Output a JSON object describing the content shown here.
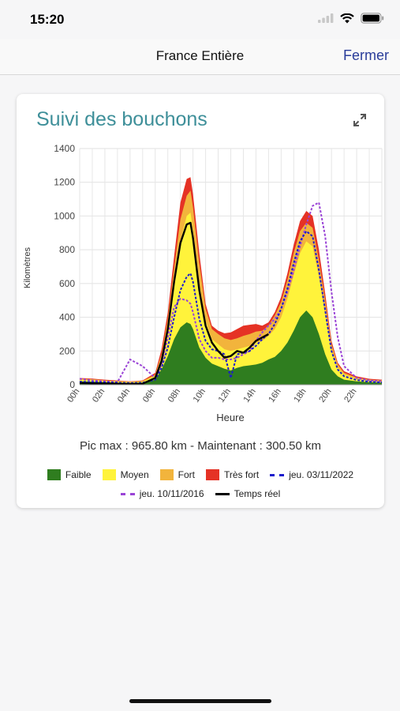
{
  "status": {
    "time": "15:20"
  },
  "nav": {
    "title": "France Entière",
    "close_label": "Fermer"
  },
  "card": {
    "title": "Suivi des bouchons",
    "pic_text": "Pic max : 965.80 km - Maintenant : 300.50 km"
  },
  "colors": {
    "faible": "#2f7d1f",
    "moyen": "#fff33b",
    "fort": "#f2b43c",
    "tres_fort": "#e53225",
    "jeu_2022": "#1b1bcc",
    "jeu_2016": "#9a44d6",
    "temps_reel": "#000000",
    "title": "#3e8f99"
  },
  "legend": [
    {
      "key": "faible",
      "label": "Faible",
      "kind": "swatch"
    },
    {
      "key": "moyen",
      "label": "Moyen",
      "kind": "swatch"
    },
    {
      "key": "fort",
      "label": "Fort",
      "kind": "swatch"
    },
    {
      "key": "tres_fort",
      "label": "Très fort",
      "kind": "swatch"
    },
    {
      "key": "jeu_2022",
      "label": "jeu. 03/11/2022",
      "kind": "dash"
    },
    {
      "key": "jeu_2016",
      "label": "jeu. 10/11/2016",
      "kind": "dash"
    },
    {
      "key": "temps_reel",
      "label": "Temps réel",
      "kind": "solid"
    }
  ],
  "chart_data": {
    "type": "area",
    "xlabel": "Heure",
    "ylabel": "Kilomètres",
    "xlim": [
      0,
      24
    ],
    "ylim": [
      0,
      1400
    ],
    "y_ticks": [
      0,
      200,
      400,
      600,
      800,
      1000,
      1200,
      1400
    ],
    "x_ticks": [
      0,
      2,
      4,
      6,
      8,
      10,
      12,
      14,
      16,
      18,
      20,
      22
    ],
    "x_tick_labels": [
      "00h",
      "02h",
      "04h",
      "06h",
      "08h",
      "10h",
      "12h",
      "14h",
      "16h",
      "18h",
      "20h",
      "22h"
    ],
    "grid": true,
    "x": [
      0,
      1,
      2,
      3,
      4,
      5,
      6,
      6.5,
      7,
      7.5,
      8,
      8.5,
      8.8,
      9,
      9.5,
      10,
      10.5,
      11,
      11.5,
      12,
      12.5,
      13,
      13.5,
      14,
      14.5,
      15,
      15.5,
      16,
      16.5,
      17,
      17.5,
      18,
      18.5,
      19,
      19.5,
      20,
      20.5,
      21,
      22,
      23,
      24
    ],
    "series": [
      {
        "name": "Faible",
        "key": "faible",
        "values": [
          20,
          18,
          15,
          12,
          10,
          12,
          30,
          90,
          170,
          270,
          340,
          370,
          360,
          330,
          220,
          160,
          125,
          110,
          95,
          85,
          100,
          110,
          115,
          120,
          130,
          150,
          165,
          200,
          250,
          320,
          400,
          440,
          400,
          300,
          180,
          90,
          50,
          30,
          20,
          15,
          12
        ]
      },
      {
        "name": "Moyen",
        "key": "moyen",
        "values": [
          30,
          28,
          22,
          18,
          15,
          18,
          50,
          150,
          320,
          580,
          850,
          1000,
          1020,
          920,
          600,
          380,
          270,
          240,
          210,
          200,
          210,
          220,
          230,
          250,
          260,
          290,
          330,
          400,
          510,
          650,
          780,
          850,
          820,
          640,
          420,
          200,
          100,
          60,
          35,
          25,
          20
        ]
      },
      {
        "name": "Fort",
        "key": "fort",
        "values": [
          36,
          33,
          26,
          22,
          18,
          22,
          60,
          180,
          390,
          690,
          980,
          1120,
          1150,
          1050,
          720,
          450,
          330,
          300,
          275,
          265,
          275,
          290,
          300,
          315,
          320,
          350,
          410,
          490,
          620,
          780,
          910,
          960,
          930,
          740,
          500,
          240,
          120,
          70,
          42,
          30,
          26
        ]
      },
      {
        "name": "Très fort",
        "key": "tres_fort",
        "values": [
          40,
          36,
          30,
          25,
          20,
          25,
          70,
          210,
          430,
          760,
          1080,
          1220,
          1230,
          1130,
          780,
          480,
          350,
          320,
          305,
          310,
          330,
          350,
          355,
          360,
          350,
          370,
          430,
          520,
          660,
          830,
          970,
          1030,
          1000,
          800,
          540,
          260,
          130,
          80,
          50,
          35,
          30
        ]
      },
      {
        "name": "jeu. 03/11/2022",
        "key": "jeu_2022",
        "values": [
          18,
          16,
          14,
          12,
          10,
          12,
          30,
          100,
          220,
          400,
          560,
          640,
          660,
          610,
          390,
          260,
          210,
          200,
          180,
          40,
          180,
          190,
          200,
          230,
          270,
          300,
          360,
          450,
          570,
          720,
          850,
          910,
          880,
          680,
          440,
          200,
          90,
          50,
          28,
          18,
          14
        ]
      },
      {
        "name": "jeu. 10/11/2016",
        "key": "jeu_2016",
        "values": [
          35,
          25,
          20,
          15,
          150,
          110,
          40,
          120,
          280,
          460,
          510,
          500,
          480,
          430,
          270,
          200,
          160,
          160,
          150,
          150,
          160,
          180,
          200,
          260,
          310,
          350,
          390,
          450,
          550,
          680,
          820,
          950,
          1060,
          1080,
          880,
          550,
          280,
          110,
          40,
          25,
          20
        ]
      },
      {
        "name": "Temps réel",
        "key": "temps_reel",
        "values": [
          10,
          8,
          7,
          6,
          5,
          6,
          40,
          140,
          330,
          610,
          840,
          950,
          960,
          870,
          560,
          350,
          250,
          200,
          160,
          170,
          200,
          190,
          220,
          260,
          280,
          300,
          null,
          null,
          null,
          null,
          null,
          null,
          null,
          null,
          null,
          null,
          null,
          null,
          null,
          null,
          null
        ]
      }
    ]
  }
}
